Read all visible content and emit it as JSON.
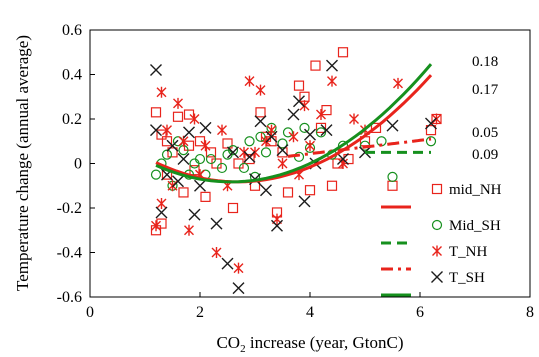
{
  "chart_data": {
    "type": "scatter",
    "title": "",
    "xlabel_main": "CO",
    "xlabel_sub": "2",
    "xlabel_rest": " increase (year, GtonC)",
    "ylabel": "Temperature change (annual average)",
    "xlim": [
      0,
      8
    ],
    "ylim": [
      -0.6,
      0.6
    ],
    "xticks": [
      "0",
      "2",
      "4",
      "6",
      "8"
    ],
    "yticks": [
      "-0.6",
      "-0.4",
      "-0.2",
      "0",
      "0.2",
      "0.4",
      "0.6"
    ],
    "grid": false,
    "legend_position": "bottom-right",
    "annotations": [
      "0.18",
      "0.17",
      "0.05",
      "0.09"
    ],
    "colors": {
      "red": "#e8241c",
      "green": "#16901e",
      "dark": "#1c1c1c"
    },
    "series": [
      {
        "name": "mid_NH",
        "marker": "square",
        "color": "#e8241c",
        "points": [
          [
            1.2,
            -0.3
          ],
          [
            1.2,
            0.23
          ],
          [
            1.3,
            0.13
          ],
          [
            1.3,
            -0.27
          ],
          [
            1.4,
            -0.05
          ],
          [
            1.4,
            0.1
          ],
          [
            1.5,
            0.05
          ],
          [
            1.6,
            0.21
          ],
          [
            1.7,
            -0.13
          ],
          [
            1.8,
            0.22
          ],
          [
            1.8,
            0.08
          ],
          [
            1.9,
            -0.03
          ],
          [
            2.0,
            0.1
          ],
          [
            2.1,
            -0.15
          ],
          [
            2.2,
            0.05
          ],
          [
            2.3,
            0.0
          ],
          [
            2.5,
            0.09
          ],
          [
            2.6,
            -0.2
          ],
          [
            2.7,
            0.0
          ],
          [
            2.9,
            0.02
          ],
          [
            3.0,
            -0.1
          ],
          [
            3.1,
            0.23
          ],
          [
            3.2,
            0.12
          ],
          [
            3.3,
            0.1
          ],
          [
            3.4,
            -0.22
          ],
          [
            3.5,
            0.05
          ],
          [
            3.6,
            -0.13
          ],
          [
            3.8,
            0.35
          ],
          [
            3.9,
            0.3
          ],
          [
            4.0,
            -0.12
          ],
          [
            4.1,
            0.44
          ],
          [
            4.2,
            0.16
          ],
          [
            4.3,
            0.24
          ],
          [
            4.4,
            -0.1
          ],
          [
            4.5,
            0.0
          ],
          [
            4.6,
            0.5
          ],
          [
            4.7,
            0.02
          ],
          [
            5.0,
            0.1
          ],
          [
            5.2,
            0.16
          ],
          [
            5.5,
            -0.1
          ],
          [
            6.2,
            0.15
          ],
          [
            6.3,
            0.2
          ]
        ]
      },
      {
        "name": "Mid_SH",
        "marker": "circle",
        "color": "#16901e",
        "points": [
          [
            1.2,
            -0.05
          ],
          [
            1.3,
            0.0
          ],
          [
            1.4,
            0.04
          ],
          [
            1.5,
            -0.1
          ],
          [
            1.6,
            0.1
          ],
          [
            1.7,
            0.06
          ],
          [
            1.8,
            -0.05
          ],
          [
            1.9,
            0.0
          ],
          [
            2.0,
            0.02
          ],
          [
            2.1,
            -0.05
          ],
          [
            2.2,
            0.02
          ],
          [
            2.4,
            -0.02
          ],
          [
            2.5,
            0.04
          ],
          [
            2.6,
            0.06
          ],
          [
            2.8,
            -0.02
          ],
          [
            2.9,
            0.1
          ],
          [
            3.0,
            -0.06
          ],
          [
            3.1,
            0.12
          ],
          [
            3.2,
            0.05
          ],
          [
            3.3,
            0.16
          ],
          [
            3.5,
            0.09
          ],
          [
            3.6,
            0.14
          ],
          [
            3.8,
            0.03
          ],
          [
            3.9,
            0.16
          ],
          [
            4.0,
            0.07
          ],
          [
            4.2,
            0.14
          ],
          [
            4.4,
            0.04
          ],
          [
            4.6,
            0.08
          ],
          [
            5.0,
            0.08
          ],
          [
            5.3,
            0.1
          ],
          [
            5.5,
            -0.06
          ],
          [
            6.2,
            0.1
          ]
        ]
      },
      {
        "name": "T_NH",
        "marker": "asterisk",
        "color": "#e8241c",
        "points": [
          [
            1.2,
            -0.28
          ],
          [
            1.3,
            0.32
          ],
          [
            1.3,
            -0.18
          ],
          [
            1.4,
            0.15
          ],
          [
            1.5,
            -0.1
          ],
          [
            1.6,
            0.27
          ],
          [
            1.7,
            0.1
          ],
          [
            1.8,
            -0.3
          ],
          [
            1.9,
            0.2
          ],
          [
            2.0,
            -0.05
          ],
          [
            2.1,
            0.08
          ],
          [
            2.3,
            -0.4
          ],
          [
            2.4,
            0.15
          ],
          [
            2.5,
            -0.1
          ],
          [
            2.7,
            -0.47
          ],
          [
            2.8,
            0.05
          ],
          [
            2.9,
            0.37
          ],
          [
            3.0,
            0.05
          ],
          [
            3.1,
            0.33
          ],
          [
            3.2,
            0.1
          ],
          [
            3.3,
            0.15
          ],
          [
            3.4,
            -0.25
          ],
          [
            3.5,
            0.0
          ],
          [
            3.7,
            0.12
          ],
          [
            3.8,
            -0.05
          ],
          [
            3.9,
            0.26
          ],
          [
            4.0,
            0.08
          ],
          [
            4.2,
            0.22
          ],
          [
            4.4,
            0.37
          ],
          [
            4.6,
            0.0
          ],
          [
            4.8,
            0.2
          ],
          [
            5.0,
            0.15
          ],
          [
            5.6,
            0.36
          ],
          [
            6.3,
            0.2
          ]
        ]
      },
      {
        "name": "T_SH",
        "marker": "x",
        "color": "#1c1c1c",
        "points": [
          [
            1.2,
            0.42
          ],
          [
            1.2,
            0.15
          ],
          [
            1.3,
            -0.22
          ],
          [
            1.4,
            -0.05
          ],
          [
            1.5,
            0.08
          ],
          [
            1.6,
            -0.08
          ],
          [
            1.7,
            0.02
          ],
          [
            1.8,
            0.14
          ],
          [
            1.9,
            -0.23
          ],
          [
            2.0,
            -0.1
          ],
          [
            2.1,
            0.16
          ],
          [
            2.3,
            -0.27
          ],
          [
            2.5,
            -0.45
          ],
          [
            2.6,
            0.05
          ],
          [
            2.7,
            -0.56
          ],
          [
            2.9,
            0.03
          ],
          [
            3.0,
            -0.07
          ],
          [
            3.1,
            0.19
          ],
          [
            3.2,
            -0.12
          ],
          [
            3.3,
            0.12
          ],
          [
            3.4,
            -0.28
          ],
          [
            3.5,
            0.06
          ],
          [
            3.7,
            0.22
          ],
          [
            3.8,
            0.28
          ],
          [
            3.9,
            -0.17
          ],
          [
            4.0,
            0.13
          ],
          [
            4.1,
            0.0
          ],
          [
            4.3,
            0.15
          ],
          [
            4.4,
            0.44
          ],
          [
            4.6,
            0.02
          ],
          [
            5.0,
            0.05
          ],
          [
            5.5,
            0.17
          ],
          [
            6.2,
            0.18
          ]
        ]
      }
    ],
    "fit_lines": [
      {
        "name": "mid_NH fit",
        "color": "#e8241c",
        "dash": "",
        "x0": 1.2,
        "x1": 6.2,
        "poly": [
          0.2,
          -0.21,
          0.039
        ]
      },
      {
        "name": "Mid_SH fit",
        "color": "#16901e",
        "dash": "10,6",
        "x0": 5.0,
        "x1": 6.2,
        "poly": [
          0.05,
          0,
          0
        ]
      },
      {
        "name": "T_NH fit",
        "color": "#e8241c",
        "dash": "12,5,3,5",
        "x0": 3.6,
        "x1": 6.2,
        "poly": [
          -0.076,
          0.03,
          0
        ]
      },
      {
        "name": "T_SH fit",
        "color": "#16901e",
        "dash": "",
        "x0": 1.2,
        "x1": 6.2,
        "poly": [
          0.18,
          -0.205,
          0.04
        ]
      }
    ],
    "legend": [
      {
        "label": "mid_NH",
        "marker": "square",
        "marker_color": "#e8241c",
        "line_color": "#e8241c",
        "line_dash": ""
      },
      {
        "label": "Mid_SH",
        "marker": "circle",
        "marker_color": "#16901e",
        "line_color": "#16901e",
        "line_dash": "10,6"
      },
      {
        "label": "T_NH",
        "marker": "asterisk",
        "marker_color": "#e8241c",
        "line_color": "#e8241c",
        "line_dash": "12,5,3,5"
      },
      {
        "label": "T_SH",
        "marker": "x",
        "marker_color": "#1c1c1c",
        "line_color": "#16901e",
        "line_dash": ""
      }
    ]
  }
}
